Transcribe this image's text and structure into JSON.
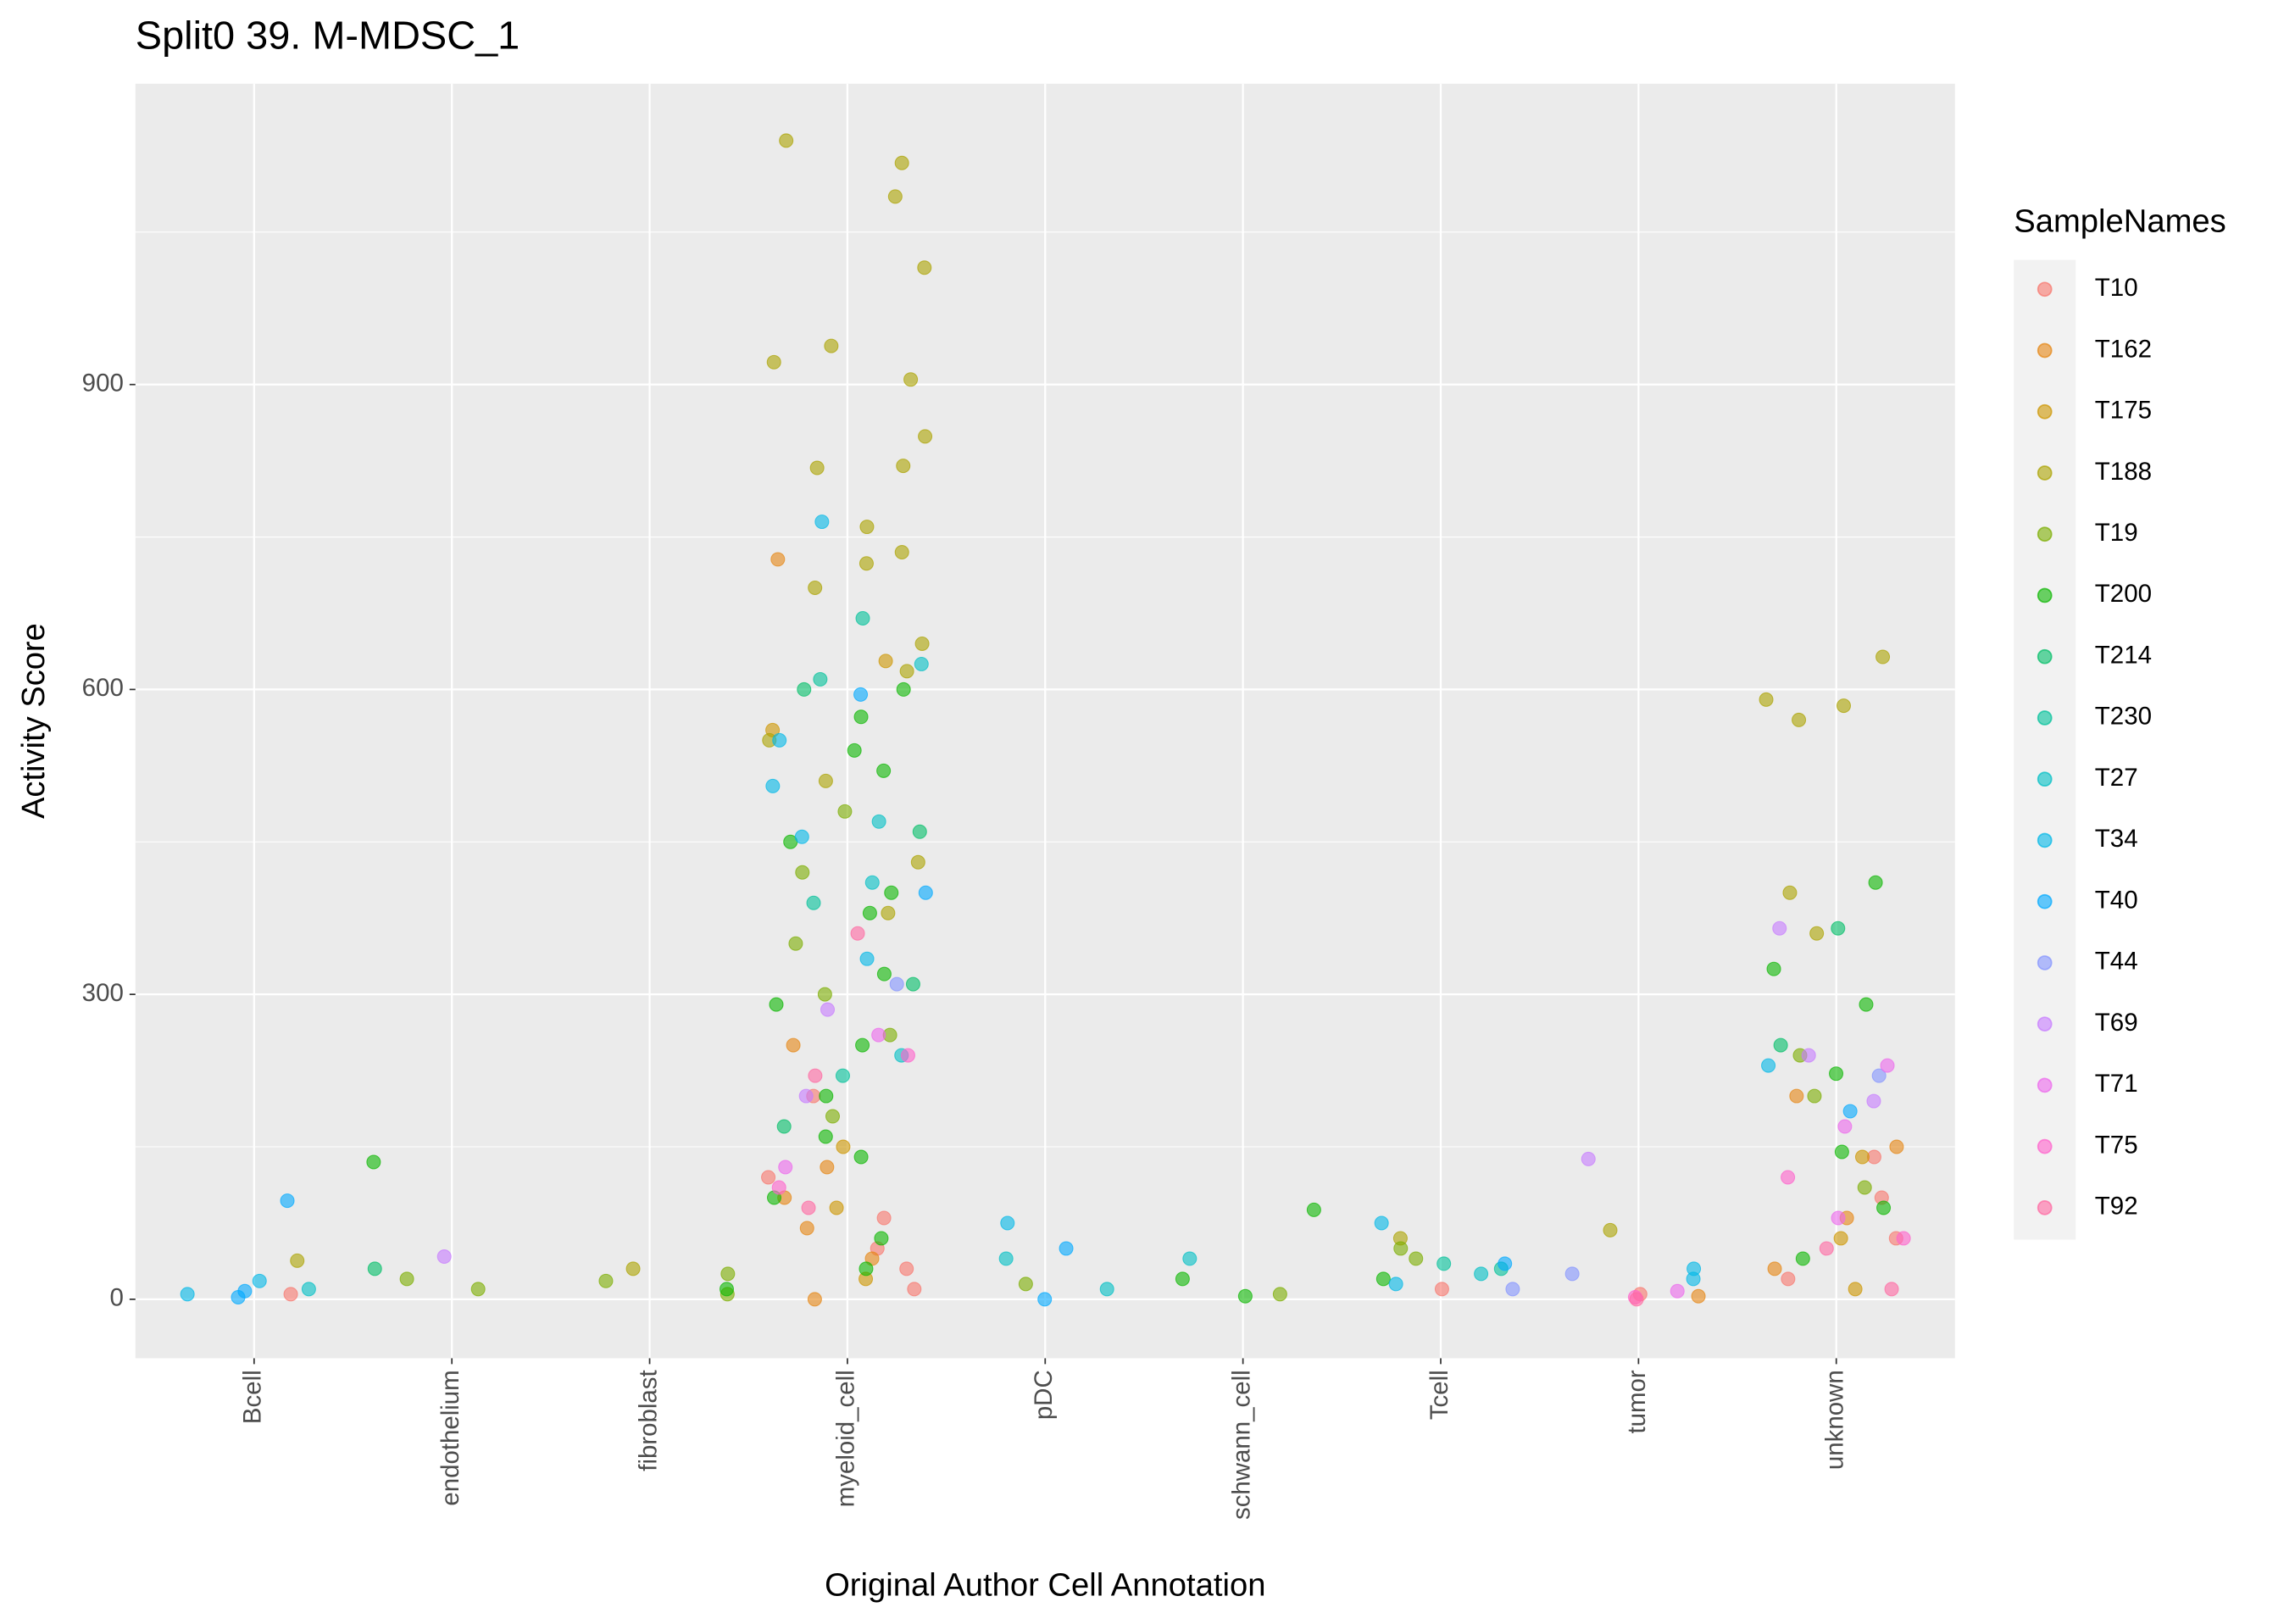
{
  "chart_data": {
    "type": "scatter",
    "title": "Split0 39. M-MDSC_1",
    "x_label": "Original Author Cell Annotation",
    "y_label": "Activity Score",
    "legend_title": "SampleNames",
    "legend_position": "right",
    "grid": true,
    "categories": [
      "Bcell",
      "endothelium",
      "fibroblast",
      "myeloid_cell",
      "pDC",
      "schwann_cell",
      "Tcell",
      "tumor",
      "unknown"
    ],
    "ylim": [
      -58,
      1196
    ],
    "yticks": [
      0,
      300,
      600,
      900
    ],
    "series": [
      {
        "name": "T10",
        "color": "#F8766D",
        "x": [
          "myeloid_cell",
          "myeloid_cell",
          "myeloid_cell",
          "myeloid_cell",
          "myeloid_cell",
          "myeloid_cell",
          "unknown",
          "unknown",
          "unknown",
          "unknown",
          "tumor",
          "Tcell",
          "Bcell"
        ],
        "values": [
          120,
          80,
          50,
          30,
          200,
          10,
          100,
          60,
          20,
          140,
          5,
          10,
          5
        ]
      },
      {
        "name": "T162",
        "color": "#E68613",
        "x": [
          "myeloid_cell",
          "myeloid_cell",
          "myeloid_cell",
          "myeloid_cell",
          "myeloid_cell",
          "myeloid_cell",
          "myeloid_cell",
          "unknown",
          "unknown",
          "unknown",
          "unknown",
          "tumor"
        ],
        "values": [
          130,
          100,
          728,
          70,
          40,
          0,
          250,
          200,
          80,
          30,
          150,
          3
        ]
      },
      {
        "name": "T175",
        "color": "#CD9600",
        "x": [
          "myeloid_cell",
          "myeloid_cell",
          "myeloid_cell",
          "myeloid_cell",
          "myeloid_cell",
          "unknown",
          "unknown",
          "unknown"
        ],
        "values": [
          628,
          150,
          90,
          20,
          560,
          140,
          60,
          10
        ]
      },
      {
        "name": "T188",
        "color": "#ABA300",
        "x": [
          "myeloid_cell",
          "myeloid_cell",
          "myeloid_cell",
          "myeloid_cell",
          "myeloid_cell",
          "myeloid_cell",
          "myeloid_cell",
          "myeloid_cell",
          "myeloid_cell",
          "myeloid_cell",
          "myeloid_cell",
          "myeloid_cell",
          "myeloid_cell",
          "myeloid_cell",
          "myeloid_cell",
          "myeloid_cell",
          "myeloid_cell",
          "myeloid_cell",
          "myeloid_cell",
          "myeloid_cell",
          "unknown",
          "unknown",
          "unknown",
          "unknown",
          "unknown",
          "unknown",
          "Bcell",
          "fibroblast",
          "Tcell",
          "tumor"
        ],
        "values": [
          1140,
          1118,
          1085,
          1015,
          938,
          922,
          905,
          849,
          818,
          820,
          760,
          724,
          735,
          700,
          645,
          618,
          550,
          510,
          430,
          380,
          632,
          590,
          584,
          570,
          400,
          360,
          38,
          30,
          60,
          68
        ]
      },
      {
        "name": "T19",
        "color": "#7CAE00",
        "x": [
          "myeloid_cell",
          "myeloid_cell",
          "myeloid_cell",
          "myeloid_cell",
          "myeloid_cell",
          "myeloid_cell",
          "unknown",
          "unknown",
          "unknown",
          "fibroblast",
          "fibroblast",
          "fibroblast",
          "endothelium",
          "endothelium",
          "Tcell",
          "Tcell",
          "pDC",
          "schwann_cell"
        ],
        "values": [
          480,
          420,
          350,
          300,
          260,
          180,
          240,
          200,
          110,
          18,
          25,
          5,
          20,
          10,
          40,
          50,
          15,
          5
        ]
      },
      {
        "name": "T200",
        "color": "#0CB702",
        "x": [
          "myeloid_cell",
          "myeloid_cell",
          "myeloid_cell",
          "myeloid_cell",
          "myeloid_cell",
          "myeloid_cell",
          "myeloid_cell",
          "myeloid_cell",
          "myeloid_cell",
          "myeloid_cell",
          "myeloid_cell",
          "myeloid_cell",
          "myeloid_cell",
          "myeloid_cell",
          "myeloid_cell",
          "myeloid_cell",
          "unknown",
          "unknown",
          "unknown",
          "unknown",
          "unknown",
          "unknown",
          "unknown",
          "endothelium",
          "schwann_cell",
          "schwann_cell",
          "schwann_cell",
          "Tcell",
          "fibroblast"
        ],
        "values": [
          600,
          573,
          540,
          520,
          450,
          400,
          380,
          320,
          290,
          250,
          200,
          160,
          140,
          100,
          60,
          30,
          410,
          325,
          290,
          222,
          145,
          90,
          40,
          135,
          88,
          20,
          3,
          20,
          10
        ]
      },
      {
        "name": "T214",
        "color": "#00BE67",
        "x": [
          "myeloid_cell",
          "myeloid_cell",
          "myeloid_cell",
          "myeloid_cell",
          "unknown",
          "unknown",
          "endothelium"
        ],
        "values": [
          600,
          460,
          310,
          170,
          365,
          250,
          30
        ]
      },
      {
        "name": "T230",
        "color": "#00C19A",
        "x": [
          "myeloid_cell",
          "myeloid_cell",
          "myeloid_cell",
          "myeloid_cell",
          "Tcell",
          "Tcell"
        ],
        "values": [
          670,
          610,
          390,
          220,
          30,
          35
        ]
      },
      {
        "name": "T27",
        "color": "#00BFC4",
        "x": [
          "myeloid_cell",
          "myeloid_cell",
          "myeloid_cell",
          "myeloid_cell",
          "pDC",
          "pDC",
          "Tcell",
          "Bcell",
          "schwann_cell"
        ],
        "values": [
          625,
          470,
          410,
          240,
          40,
          10,
          25,
          10,
          40
        ]
      },
      {
        "name": "T34",
        "color": "#00B8E7",
        "x": [
          "myeloid_cell",
          "myeloid_cell",
          "myeloid_cell",
          "myeloid_cell",
          "myeloid_cell",
          "pDC",
          "Tcell",
          "Tcell",
          "Bcell",
          "Bcell",
          "tumor",
          "tumor",
          "unknown"
        ],
        "values": [
          765,
          550,
          505,
          455,
          335,
          75,
          75,
          15,
          18,
          5,
          30,
          20,
          230
        ]
      },
      {
        "name": "T40",
        "color": "#00A9FF",
        "x": [
          "Bcell",
          "Bcell",
          "Bcell",
          "myeloid_cell",
          "myeloid_cell",
          "pDC",
          "pDC",
          "unknown",
          "Tcell"
        ],
        "values": [
          97,
          8,
          2,
          595,
          400,
          50,
          0,
          185,
          35
        ]
      },
      {
        "name": "T44",
        "color": "#8494FF",
        "x": [
          "tumor",
          "myeloid_cell",
          "unknown",
          "Tcell"
        ],
        "values": [
          25,
          310,
          220,
          10
        ]
      },
      {
        "name": "T69",
        "color": "#C77CFF",
        "x": [
          "endothelium",
          "tumor",
          "unknown",
          "unknown",
          "unknown",
          "myeloid_cell",
          "myeloid_cell"
        ],
        "values": [
          42,
          138,
          365,
          240,
          195,
          285,
          200
        ]
      },
      {
        "name": "T71",
        "color": "#ED68ED",
        "x": [
          "unknown",
          "unknown",
          "unknown",
          "myeloid_cell",
          "myeloid_cell",
          "tumor"
        ],
        "values": [
          230,
          170,
          80,
          260,
          130,
          8
        ]
      },
      {
        "name": "T75",
        "color": "#FF61CC",
        "x": [
          "unknown",
          "unknown",
          "myeloid_cell",
          "myeloid_cell",
          "tumor"
        ],
        "values": [
          120,
          60,
          240,
          110,
          2
        ]
      },
      {
        "name": "T92",
        "color": "#FF68A1",
        "x": [
          "myeloid_cell",
          "myeloid_cell",
          "myeloid_cell",
          "unknown",
          "unknown",
          "tumor"
        ],
        "values": [
          360,
          220,
          90,
          50,
          10,
          0
        ]
      }
    ]
  }
}
